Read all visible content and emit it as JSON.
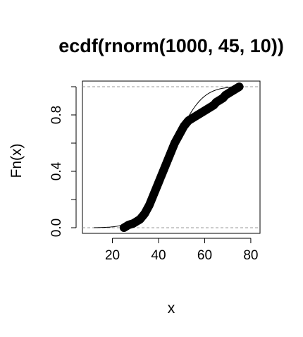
{
  "chart_data": {
    "type": "scatter",
    "title": "ecdf(rnorm(1000, 45, 10))",
    "xlabel": "x",
    "ylabel": "Fn(x)",
    "xlim": [
      7,
      84
    ],
    "ylim": [
      -0.04,
      1.04
    ],
    "x_ticks": [
      20,
      40,
      60,
      80
    ],
    "y_ticks": [
      0.0,
      0.2,
      0.4,
      0.6,
      0.8,
      1.0
    ],
    "y_tick_labels": [
      "0.0",
      "",
      "0.4",
      "",
      "0.8",
      ""
    ],
    "x_tick_labels": [
      "20",
      "40",
      "60",
      "80"
    ],
    "grid": false,
    "legend": "none",
    "colors": {
      "points": "#000000",
      "reference_line": "#000000",
      "dashed_lines": "#999999"
    },
    "reference_curve": {
      "description": "normal CDF",
      "mean": 45,
      "sd": 10
    },
    "horizontal_dashed_lines": [
      0,
      1
    ],
    "series": [
      {
        "x": [
          25,
          27,
          29,
          31,
          32,
          33,
          34,
          35,
          36,
          37,
          38,
          39,
          40,
          41,
          42,
          43,
          44,
          45,
          46,
          47,
          48,
          49,
          50,
          51,
          52,
          53,
          54,
          55,
          56,
          57,
          58,
          59,
          60,
          61,
          62,
          63,
          64,
          65,
          66,
          67,
          68,
          69,
          70,
          71,
          72,
          73,
          74,
          75
        ],
        "y": [
          0.0,
          0.02,
          0.03,
          0.05,
          0.06,
          0.08,
          0.1,
          0.13,
          0.16,
          0.2,
          0.24,
          0.28,
          0.32,
          0.36,
          0.4,
          0.44,
          0.48,
          0.52,
          0.56,
          0.6,
          0.63,
          0.66,
          0.69,
          0.72,
          0.74,
          0.76,
          0.77,
          0.78,
          0.79,
          0.8,
          0.81,
          0.82,
          0.83,
          0.84,
          0.85,
          0.86,
          0.87,
          0.89,
          0.9,
          0.91,
          0.92,
          0.94,
          0.95,
          0.96,
          0.97,
          0.98,
          0.99,
          1.0
        ]
      }
    ]
  }
}
